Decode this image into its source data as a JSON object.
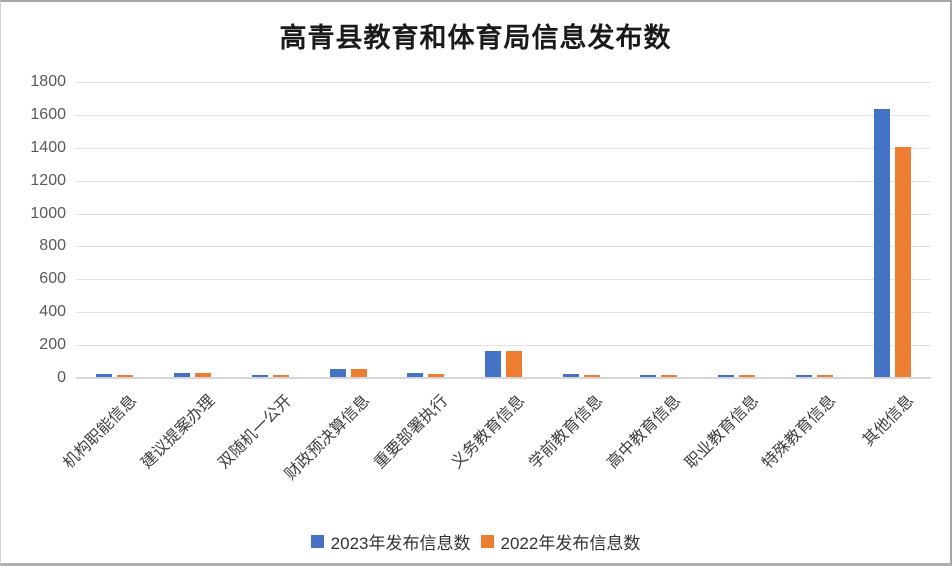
{
  "title": "高青县教育和体育局信息发布数",
  "chart_data": {
    "type": "bar",
    "title": "高青县教育和体育局信息发布数",
    "categories": [
      "机构职能信息",
      "建议提案办理",
      "双随机一公开",
      "财政预决算信息",
      "重要部署执行",
      "义务教育信息",
      "学前教育信息",
      "高中教育信息",
      "职业教育信息",
      "特殊教育信息",
      "其他信息"
    ],
    "series": [
      {
        "name": "2023年发布信息数",
        "color": "#4472C4",
        "values": [
          20,
          25,
          12,
          50,
          22,
          160,
          20,
          12,
          12,
          12,
          1630
        ]
      },
      {
        "name": "2022年发布信息数",
        "color": "#ED7D31",
        "values": [
          12,
          22,
          10,
          48,
          18,
          160,
          12,
          10,
          10,
          10,
          1400
        ]
      }
    ],
    "ylim": [
      0,
      1800
    ],
    "yticks": [
      0,
      200,
      400,
      600,
      800,
      1000,
      1200,
      1400,
      1600,
      1800
    ],
    "grid": true,
    "legend_position": "bottom"
  },
  "colors": {
    "series_2023": "#4472C4",
    "series_2022": "#ED7D31",
    "gridline": "#e2e2e2",
    "axis_text": "#595959",
    "title_text": "#1a1a1a"
  }
}
